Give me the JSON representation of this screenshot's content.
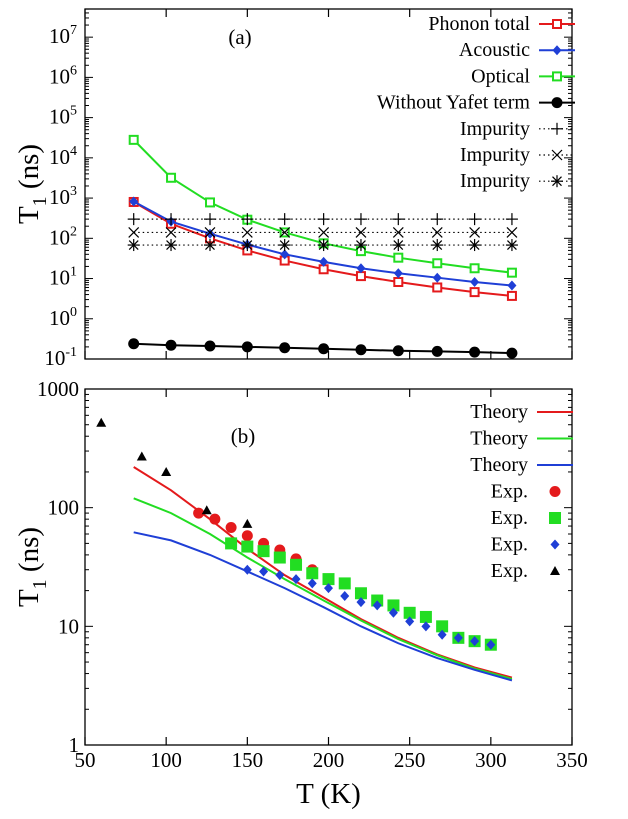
{
  "chart_data": [
    {
      "type": "line",
      "panel_label": "(a)",
      "xlabel": "",
      "ylabel": "T_1 (ns)",
      "xlim": [
        50,
        350
      ],
      "ylim_log10": [
        -1,
        7.7
      ],
      "log_y": true,
      "y_tick_exponents": [
        -1,
        0,
        1,
        2,
        3,
        4,
        5,
        6,
        7
      ],
      "x_ticks": [
        50,
        100,
        150,
        200,
        250,
        300,
        350
      ],
      "legend_position": "top-right",
      "series": [
        {
          "name": "Phonon total",
          "color": "#e41a1c",
          "marker": "square-open",
          "line": "solid",
          "x": [
            80,
            103,
            127,
            150,
            173,
            197,
            220,
            243,
            267,
            290,
            313
          ],
          "y": [
            800,
            230,
            100,
            50,
            28,
            17,
            11.5,
            8.2,
            6.0,
            4.6,
            3.7
          ]
        },
        {
          "name": "Acoustic",
          "color": "#1f3fd6",
          "marker": "diamond-filled",
          "line": "solid",
          "x": [
            80,
            103,
            127,
            150,
            173,
            197,
            220,
            243,
            267,
            290,
            313
          ],
          "y": [
            820,
            260,
            130,
            70,
            40,
            26,
            18,
            13.5,
            10.5,
            8.2,
            6.7
          ]
        },
        {
          "name": "Optical",
          "color": "#22dd22",
          "marker": "square-open",
          "line": "solid",
          "x": [
            80,
            103,
            127,
            150,
            173,
            197,
            220,
            243,
            267,
            290,
            313
          ],
          "y": [
            28000,
            3200,
            780,
            290,
            140,
            75,
            48,
            33,
            24,
            18,
            14
          ]
        },
        {
          "name": "Without Yafet term",
          "color": "#000000",
          "marker": "circle-filled",
          "line": "solid",
          "x": [
            80,
            103,
            127,
            150,
            173,
            197,
            220,
            243,
            267,
            290,
            313
          ],
          "y": [
            0.24,
            0.22,
            0.21,
            0.2,
            0.19,
            0.18,
            0.17,
            0.16,
            0.155,
            0.148,
            0.14
          ]
        },
        {
          "name": "Impurity",
          "color": "#000000",
          "marker": "plus",
          "line": "dotted",
          "x": [
            80,
            103,
            127,
            150,
            173,
            197,
            220,
            243,
            267,
            290,
            313
          ],
          "y": [
            300,
            300,
            300,
            300,
            300,
            300,
            300,
            300,
            300,
            300,
            300
          ]
        },
        {
          "name": "Impurity",
          "color": "#000000",
          "marker": "cross",
          "line": "dotted",
          "x": [
            80,
            103,
            127,
            150,
            173,
            197,
            220,
            243,
            267,
            290,
            313
          ],
          "y": [
            140,
            140,
            140,
            140,
            140,
            140,
            140,
            140,
            140,
            140,
            140
          ]
        },
        {
          "name": "Impurity",
          "color": "#000000",
          "marker": "star",
          "line": "dotted",
          "x": [
            80,
            103,
            127,
            150,
            173,
            197,
            220,
            243,
            267,
            290,
            313
          ],
          "y": [
            68,
            68,
            68,
            68,
            68,
            68,
            68,
            68,
            68,
            68,
            68
          ]
        }
      ]
    },
    {
      "type": "line",
      "panel_label": "(b)",
      "xlabel": "T (K)",
      "ylabel": "T_1 (ns)",
      "xlim": [
        50,
        350
      ],
      "ylim": [
        1,
        1000
      ],
      "log_y": true,
      "y_ticks": [
        1,
        10,
        100,
        1000
      ],
      "y_tick_labels": [
        "1",
        "10",
        "100",
        "1000"
      ],
      "x_ticks": [
        50,
        100,
        150,
        200,
        250,
        300,
        350
      ],
      "x_tick_labels": [
        "50",
        "100",
        "150",
        "200",
        "250",
        "300",
        "350"
      ],
      "legend_position": "top-right",
      "series": [
        {
          "name": "Theory",
          "color": "#e41a1c",
          "marker": "none",
          "line": "solid",
          "x": [
            80,
            103,
            127,
            150,
            173,
            197,
            220,
            243,
            267,
            290,
            313
          ],
          "y": [
            220,
            140,
            80,
            45,
            27,
            17.5,
            11.5,
            8.0,
            5.8,
            4.5,
            3.7
          ]
        },
        {
          "name": "Theory",
          "color": "#22dd22",
          "marker": "none",
          "line": "solid",
          "x": [
            80,
            103,
            127,
            150,
            173,
            197,
            220,
            243,
            267,
            290,
            313
          ],
          "y": [
            120,
            90,
            60,
            38,
            25,
            16.5,
            11.2,
            7.8,
            5.7,
            4.4,
            3.6
          ]
        },
        {
          "name": "Theory",
          "color": "#1f3fd6",
          "marker": "none",
          "line": "solid",
          "x": [
            80,
            103,
            127,
            150,
            173,
            197,
            220,
            243,
            267,
            290,
            313
          ],
          "y": [
            62,
            53,
            40,
            29,
            21,
            14.5,
            10,
            7.2,
            5.4,
            4.3,
            3.5
          ]
        },
        {
          "name": "Exp.",
          "color": "#e41a1c",
          "marker": "circle-filled",
          "line": "none",
          "x": [
            120,
            130,
            140,
            150,
            160,
            170,
            180,
            190
          ],
          "y": [
            90,
            80,
            68,
            58,
            50,
            44,
            37,
            30
          ]
        },
        {
          "name": "Exp.",
          "color": "#22dd22",
          "marker": "square-filled",
          "line": "none",
          "x": [
            140,
            150,
            160,
            170,
            180,
            190,
            200,
            210,
            220,
            230,
            240,
            250,
            260,
            270,
            280,
            290,
            300
          ],
          "y": [
            50,
            47,
            43,
            38,
            33,
            28,
            25,
            23,
            19,
            16.5,
            15,
            13,
            12,
            10,
            8,
            7.5,
            7
          ]
        },
        {
          "name": "Exp.",
          "color": "#1f3fd6",
          "marker": "diamond-filled",
          "line": "none",
          "x": [
            150,
            160,
            170,
            180,
            190,
            200,
            210,
            220,
            230,
            240,
            250,
            260,
            270,
            280,
            290,
            300
          ],
          "y": [
            30,
            29,
            27,
            25,
            23,
            21,
            18,
            16,
            15,
            13,
            11,
            10,
            8.5,
            8,
            7.5,
            7
          ]
        },
        {
          "name": "Exp.",
          "color": "#000000",
          "marker": "triangle-filled",
          "line": "none",
          "x": [
            60,
            85,
            100,
            125,
            150
          ],
          "y": [
            520,
            270,
            200,
            95,
            73
          ]
        }
      ]
    }
  ]
}
